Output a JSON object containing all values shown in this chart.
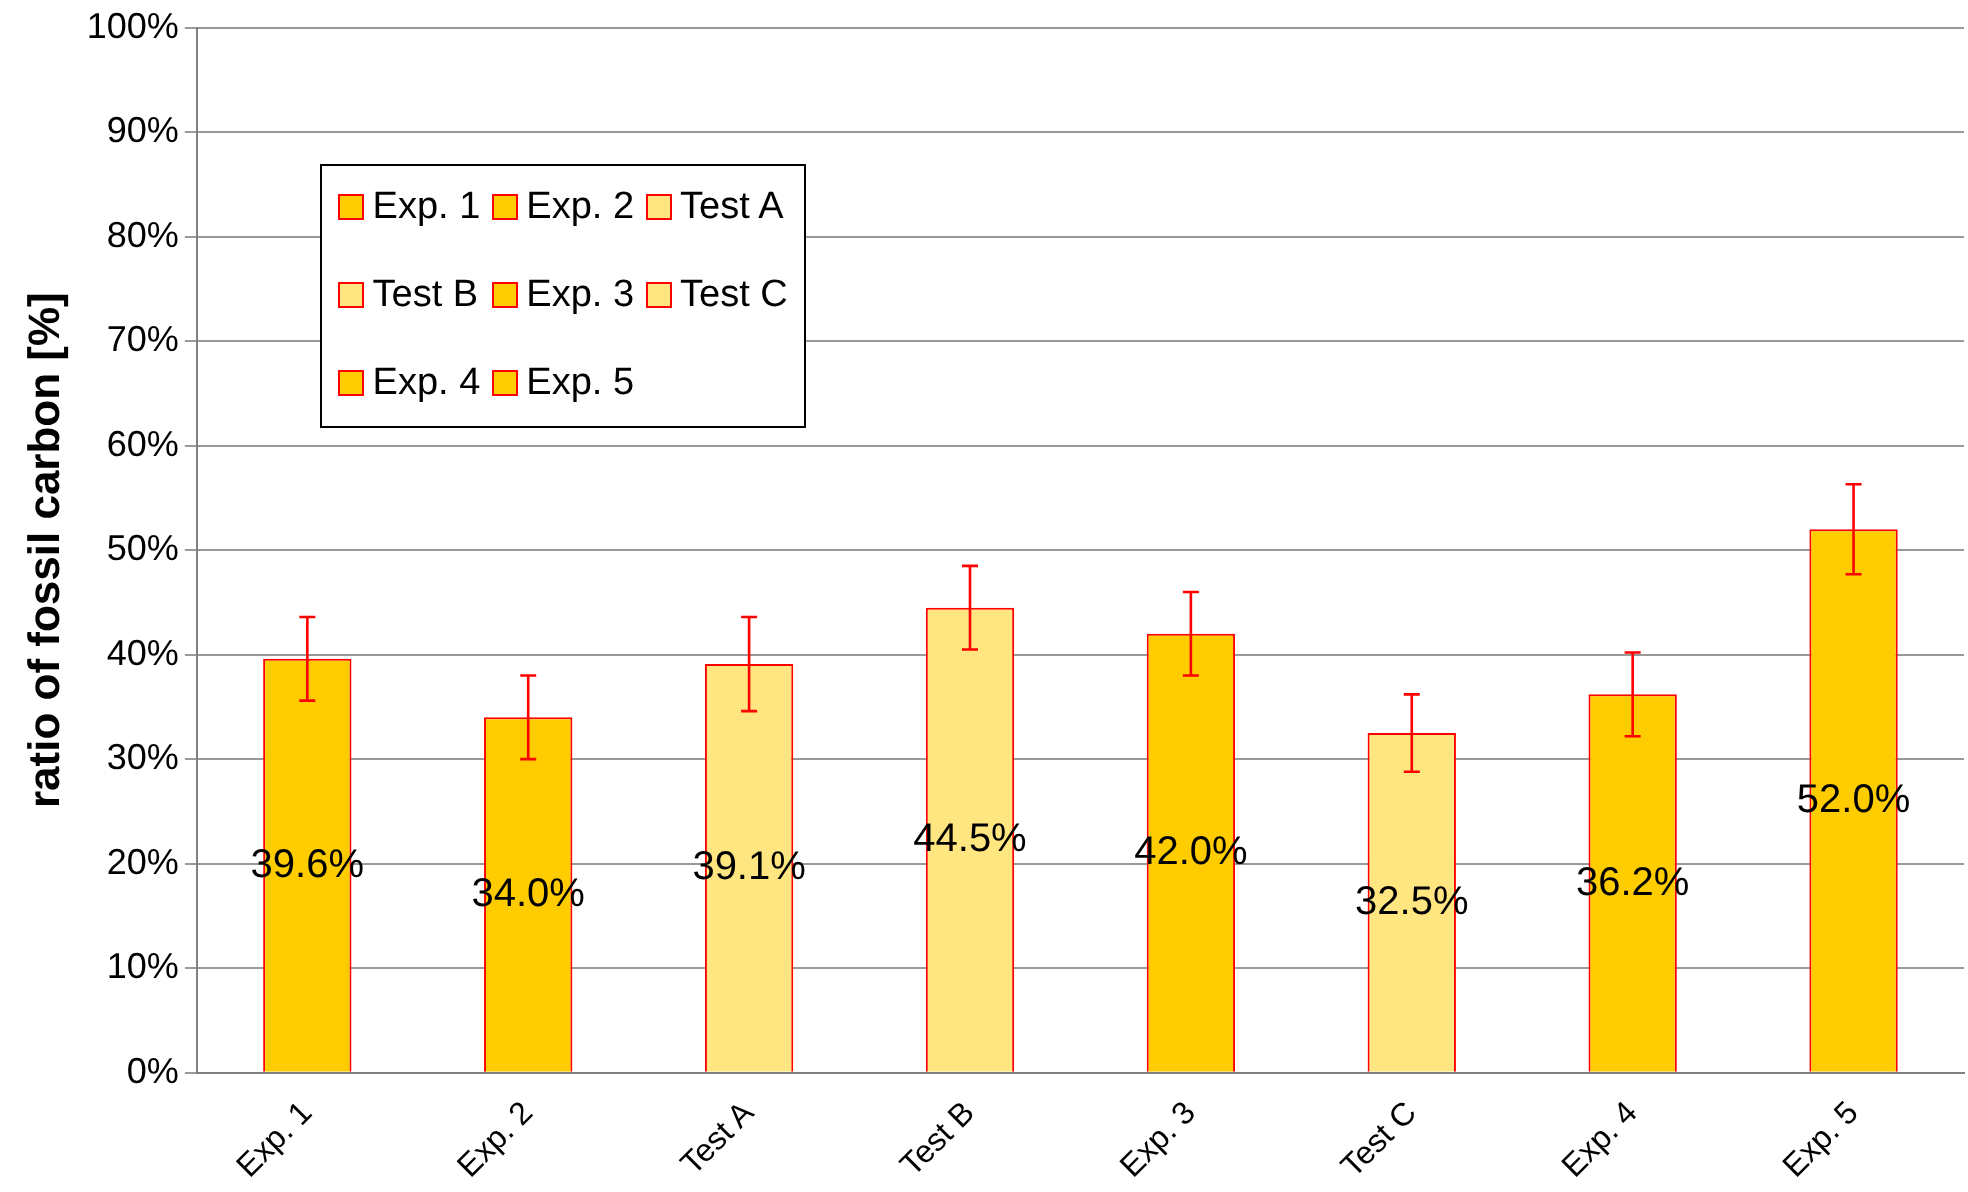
{
  "chart_data": {
    "type": "bar",
    "ylabel": "ratio of fossil carbon [%]",
    "categories": [
      "Exp. 1",
      "Exp. 2",
      "Test A",
      "Test B",
      "Exp. 3",
      "Test C",
      "Exp. 4",
      "Exp. 5"
    ],
    "series": [
      {
        "name": "Exp. 1",
        "color": "#ffcc00",
        "values": [
          39.6,
          null,
          null,
          null,
          null,
          null,
          null,
          null
        ],
        "errors": [
          4,
          null,
          null,
          null,
          null,
          null,
          null,
          null
        ],
        "value_labels": [
          "39.6%",
          null,
          null,
          null,
          null,
          null,
          null,
          null
        ]
      },
      {
        "name": "Exp. 2",
        "color": "#ffcc00",
        "values": [
          null,
          34.0,
          null,
          null,
          null,
          null,
          null,
          null
        ],
        "errors": [
          null,
          4,
          null,
          null,
          null,
          null,
          null,
          null
        ],
        "value_labels": [
          null,
          "34.0%",
          null,
          null,
          null,
          null,
          null,
          null
        ]
      },
      {
        "name": "Test A",
        "color": "#ffe680",
        "values": [
          null,
          null,
          39.1,
          null,
          null,
          null,
          null,
          null
        ],
        "errors": [
          null,
          null,
          4.5,
          null,
          null,
          null,
          null,
          null
        ],
        "value_labels": [
          null,
          null,
          "39.1%",
          null,
          null,
          null,
          null,
          null
        ]
      },
      {
        "name": "Test B",
        "color": "#ffe680",
        "values": [
          null,
          null,
          null,
          44.5,
          null,
          null,
          null,
          null
        ],
        "errors": [
          null,
          null,
          null,
          4,
          null,
          null,
          null,
          null
        ],
        "value_labels": [
          null,
          null,
          null,
          "44.5%",
          null,
          null,
          null,
          null
        ]
      },
      {
        "name": "Exp. 3",
        "color": "#ffcc00",
        "values": [
          null,
          null,
          null,
          null,
          42.0,
          null,
          null,
          null
        ],
        "errors": [
          null,
          null,
          null,
          null,
          4,
          null,
          null,
          null
        ],
        "value_labels": [
          null,
          null,
          null,
          null,
          "42.0%",
          null,
          null,
          null
        ]
      },
      {
        "name": "Test C",
        "color": "#ffe680",
        "values": [
          null,
          null,
          null,
          null,
          null,
          32.5,
          null,
          null
        ],
        "errors": [
          null,
          null,
          null,
          null,
          null,
          3.7,
          null,
          null
        ],
        "value_labels": [
          null,
          null,
          null,
          null,
          null,
          "32.5%",
          null,
          null
        ]
      },
      {
        "name": "Exp. 4",
        "color": "#ffcc00",
        "values": [
          null,
          null,
          null,
          null,
          null,
          null,
          36.2,
          null
        ],
        "errors": [
          null,
          null,
          null,
          null,
          null,
          null,
          4,
          null
        ],
        "value_labels": [
          null,
          null,
          null,
          null,
          null,
          null,
          "36.2%",
          null
        ]
      },
      {
        "name": "Exp. 5",
        "color": "#ffcc00",
        "values": [
          null,
          null,
          null,
          null,
          null,
          null,
          null,
          52.0
        ],
        "errors": [
          null,
          null,
          null,
          null,
          null,
          null,
          null,
          4.3
        ],
        "value_labels": [
          null,
          null,
          null,
          null,
          null,
          null,
          null,
          "52.0%"
        ]
      }
    ],
    "ylim": [
      0,
      100
    ],
    "yticks": [
      {
        "value": 0,
        "label": "0%"
      },
      {
        "value": 10,
        "label": "10%"
      },
      {
        "value": 20,
        "label": "20%"
      },
      {
        "value": 30,
        "label": "30%"
      },
      {
        "value": 40,
        "label": "40%"
      },
      {
        "value": 50,
        "label": "50%"
      },
      {
        "value": 60,
        "label": "60%"
      },
      {
        "value": 70,
        "label": "70%"
      },
      {
        "value": 80,
        "label": "80%"
      },
      {
        "value": 90,
        "label": "90%"
      },
      {
        "value": 100,
        "label": "100%"
      }
    ],
    "grid": "y",
    "legend": "top left"
  }
}
